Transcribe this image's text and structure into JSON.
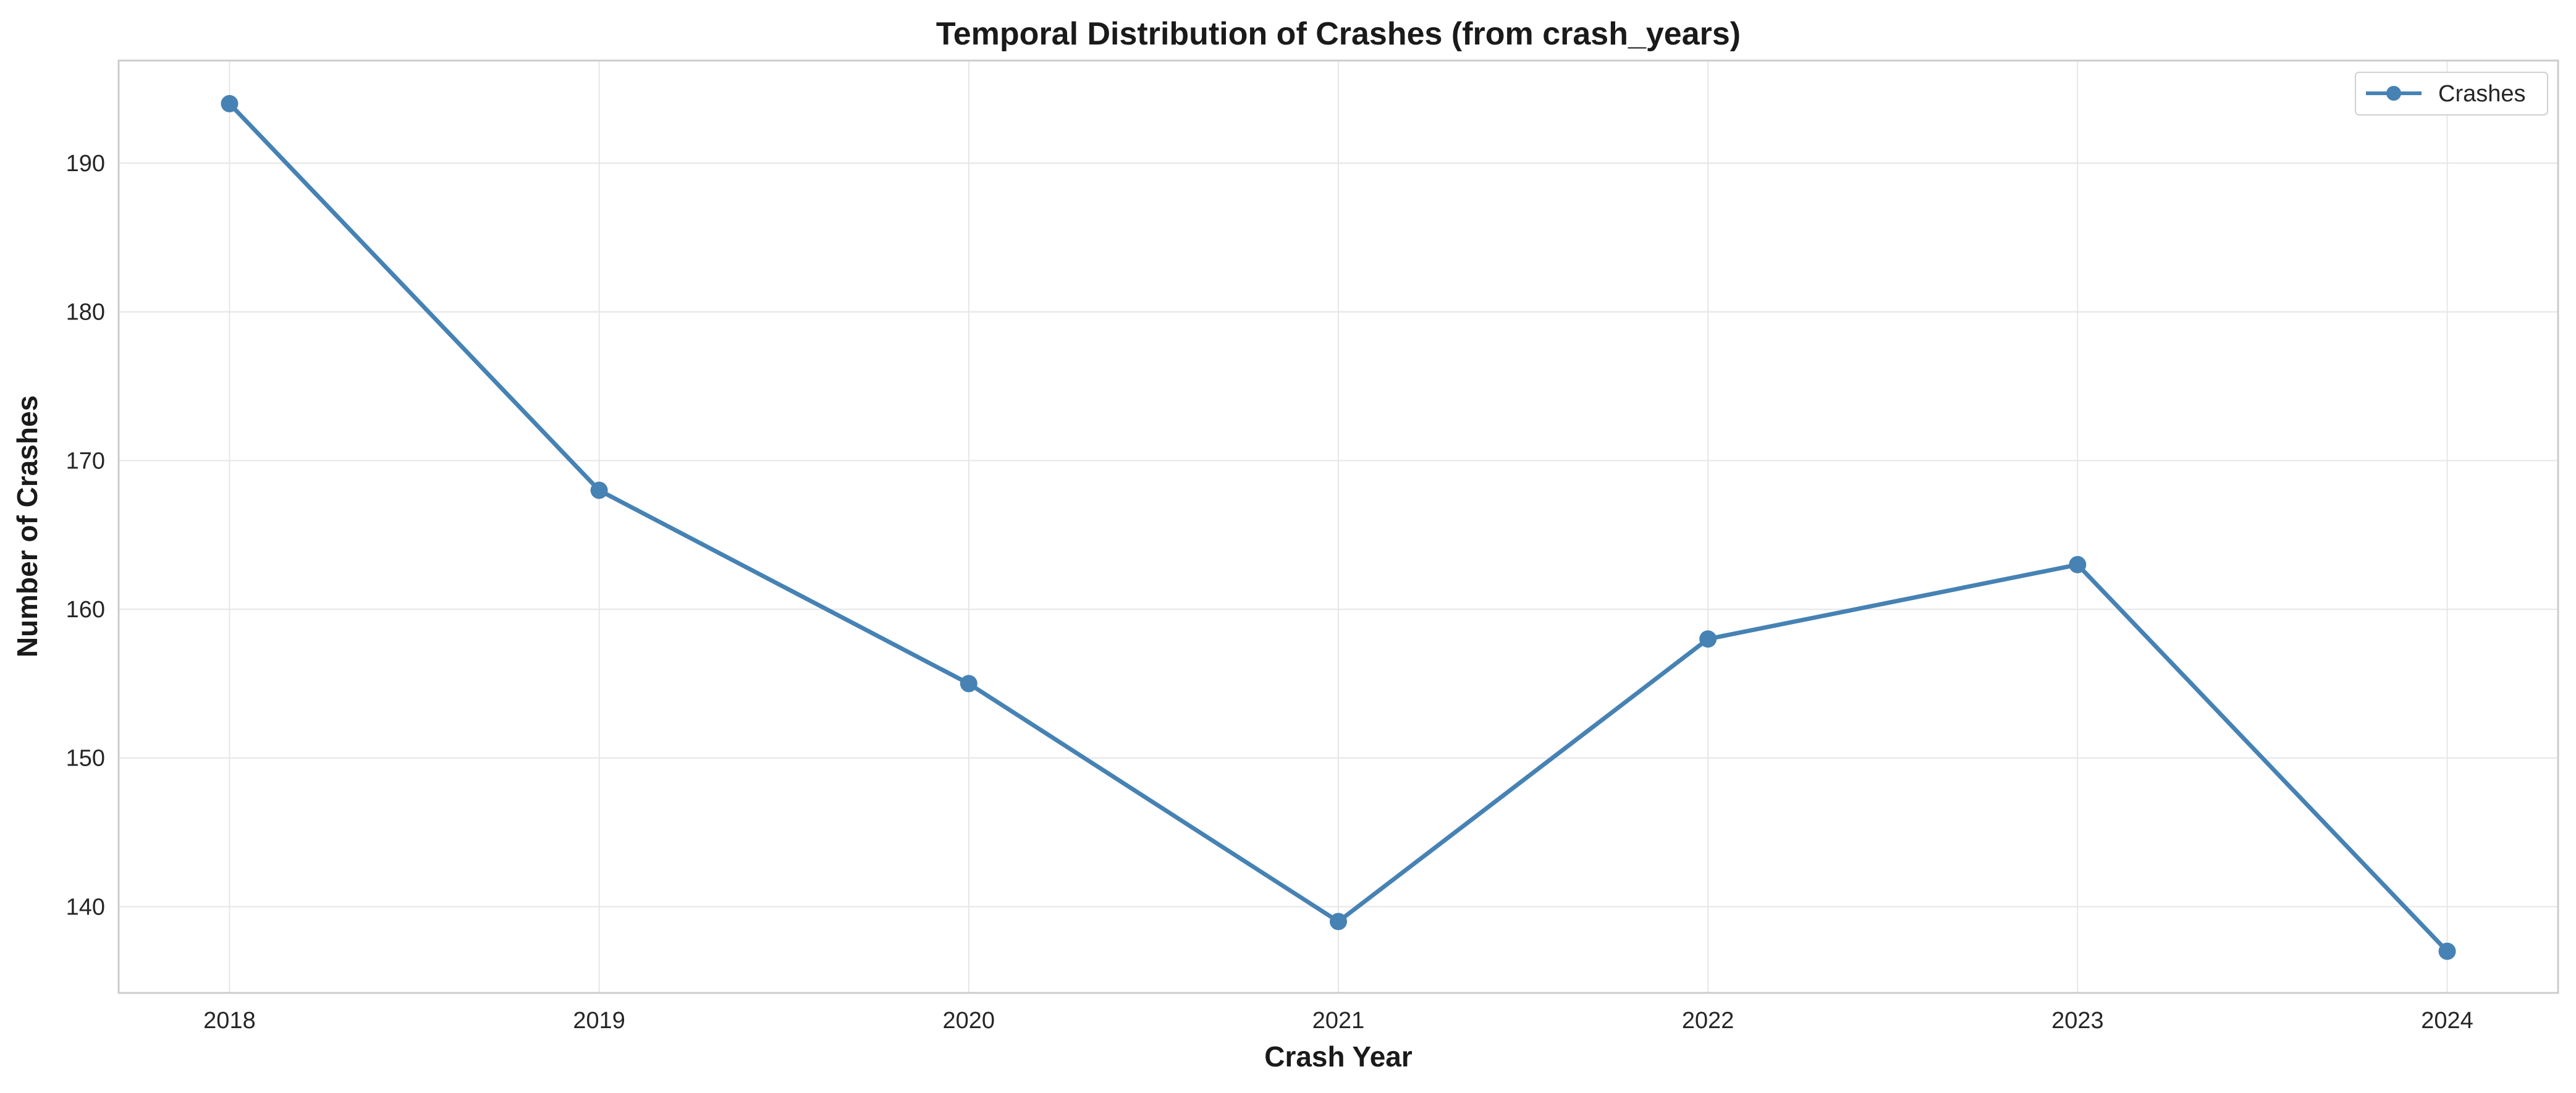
{
  "chart_data": {
    "type": "line",
    "title": "Temporal Distribution of Crashes (from crash_years)",
    "xlabel": "Crash Year",
    "ylabel": "Number of Crashes",
    "categories": [
      "2018",
      "2019",
      "2020",
      "2021",
      "2022",
      "2023",
      "2024"
    ],
    "x": [
      2018,
      2019,
      2020,
      2021,
      2022,
      2023,
      2024
    ],
    "series": [
      {
        "name": "Crashes",
        "values": [
          194,
          168,
          155,
          139,
          158,
          163,
          137
        ],
        "color": "#4682b4",
        "marker": "circle"
      }
    ],
    "xlim": [
      2017.7,
      2024.3
    ],
    "ylim": [
      134.2,
      196.9
    ],
    "yticks": [
      140,
      150,
      160,
      170,
      180,
      190
    ],
    "grid": true,
    "legend": {
      "position": "top-right",
      "entries": [
        "Crashes"
      ]
    }
  }
}
